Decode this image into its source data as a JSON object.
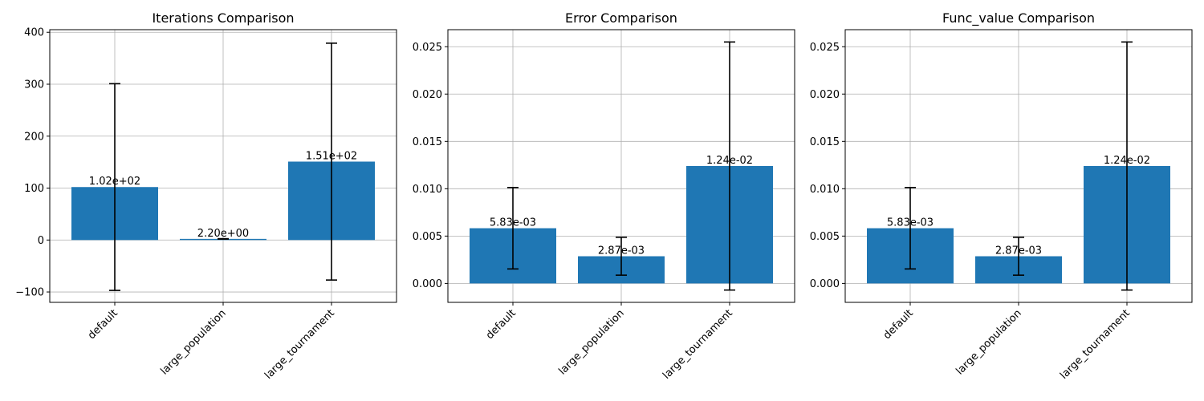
{
  "colors": {
    "bar": "#1f77b4",
    "grid": "#b0b0b0",
    "axis": "#000000",
    "errorbar": "#000000",
    "background": "#ffffff"
  },
  "chart_data": [
    {
      "type": "bar",
      "title": "Iterations Comparison",
      "xlabel": "",
      "ylabel": "",
      "categories": [
        "default",
        "large_population",
        "large_tournament"
      ],
      "values": [
        102,
        2.2,
        151
      ],
      "errors": [
        199,
        0.4,
        228
      ],
      "value_labels": [
        "1.02e+02",
        "2.20e+00",
        "1.51e+02"
      ],
      "ylim": [
        -120,
        405
      ],
      "yticks": [
        -100,
        0,
        100,
        200,
        300,
        400
      ],
      "ytick_labels": [
        "−100",
        "0",
        "100",
        "200",
        "300",
        "400"
      ],
      "grid": true
    },
    {
      "type": "bar",
      "title": "Error Comparison",
      "xlabel": "",
      "ylabel": "",
      "categories": [
        "default",
        "large_population",
        "large_tournament"
      ],
      "values": [
        0.00583,
        0.00287,
        0.0124
      ],
      "errors": [
        0.0043,
        0.002,
        0.0131
      ],
      "value_labels": [
        "5.83e-03",
        "2.87e-03",
        "1.24e-02"
      ],
      "ylim": [
        -0.002,
        0.0268
      ],
      "yticks": [
        0,
        0.005,
        0.01,
        0.015,
        0.02,
        0.025
      ],
      "ytick_labels": [
        "0.000",
        "0.005",
        "0.010",
        "0.015",
        "0.020",
        "0.025"
      ],
      "grid": true
    },
    {
      "type": "bar",
      "title": "Func_value Comparison",
      "xlabel": "",
      "ylabel": "",
      "categories": [
        "default",
        "large_population",
        "large_tournament"
      ],
      "values": [
        0.00583,
        0.00287,
        0.0124
      ],
      "errors": [
        0.0043,
        0.002,
        0.0131
      ],
      "value_labels": [
        "5.83e-03",
        "2.87e-03",
        "1.24e-02"
      ],
      "ylim": [
        -0.002,
        0.0268
      ],
      "yticks": [
        0,
        0.005,
        0.01,
        0.015,
        0.02,
        0.025
      ],
      "ytick_labels": [
        "0.000",
        "0.005",
        "0.010",
        "0.015",
        "0.020",
        "0.025"
      ],
      "grid": true
    }
  ]
}
